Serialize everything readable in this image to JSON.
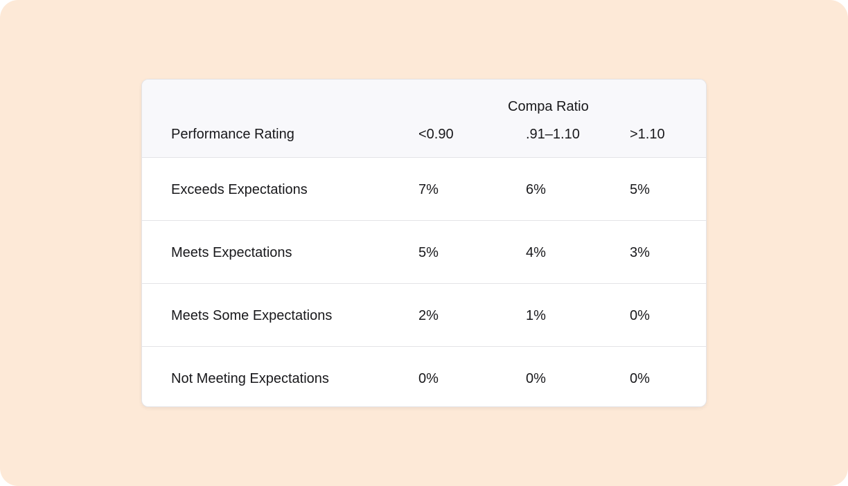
{
  "table": {
    "group_header": "Compa Ratio",
    "columns": [
      "Performance Rating",
      "<0.90",
      ".91–1.10",
      ">1.10"
    ],
    "rows": [
      {
        "rating": "Exceeds Expectations",
        "values": [
          "7%",
          "6%",
          "5%"
        ]
      },
      {
        "rating": "Meets Expectations",
        "values": [
          "5%",
          "4%",
          "3%"
        ]
      },
      {
        "rating": "Meets Some Expectations",
        "values": [
          "2%",
          "1%",
          "0%"
        ]
      },
      {
        "rating": "Not Meeting Expectations",
        "values": [
          "0%",
          "0%",
          "0%"
        ]
      }
    ]
  },
  "colors": {
    "page_background": "#fde9d7",
    "card_background": "#ffffff",
    "header_background": "#f8f8fb",
    "divider": "#e4e4e7",
    "text": "#18181b"
  }
}
